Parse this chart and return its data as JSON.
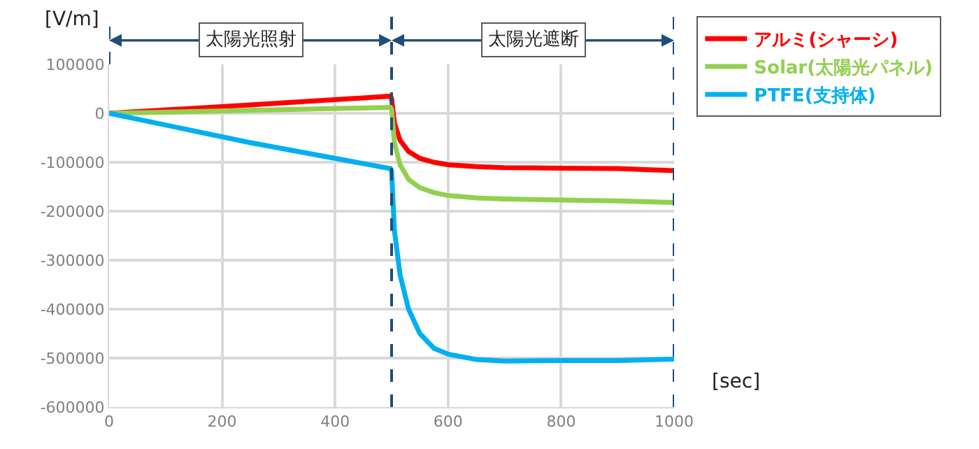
{
  "chart_data": {
    "type": "line",
    "ylabel": "[V/m]",
    "xlabel": "[sec]",
    "annotations": [
      "太陽光照射",
      "太陽光遮断"
    ],
    "x": [
      0,
      250,
      498,
      500,
      505,
      515,
      530,
      550,
      575,
      600,
      650,
      700,
      800,
      900,
      1000
    ],
    "series": [
      {
        "name": "アルミ(シャーシ)",
        "color": "#ff0000",
        "values": [
          0,
          17000,
          35000,
          30000,
          -20000,
          -55000,
          -78000,
          -92000,
          -100000,
          -105000,
          -109000,
          -111000,
          -112000,
          -113000,
          -117000
        ]
      },
      {
        "name": "Solar(太陽光パネル)",
        "color": "#92d050",
        "values": [
          0,
          6000,
          12000,
          8000,
          -60000,
          -105000,
          -135000,
          -152000,
          -162000,
          -168000,
          -173000,
          -175000,
          -177000,
          -179000,
          -182000
        ]
      },
      {
        "name": "PTFE(支持体)",
        "color": "#00b0f0",
        "values": [
          0,
          -60000,
          -113000,
          -118000,
          -240000,
          -330000,
          -400000,
          -450000,
          -480000,
          -492000,
          -503000,
          -506000,
          -505000,
          -505000,
          -502000
        ]
      }
    ],
    "xlim": [
      0,
      1000
    ],
    "xticks": [
      0,
      200,
      400,
      600,
      800,
      1000
    ],
    "ylim": [
      -600000,
      100000
    ],
    "yticks": [
      -600000,
      -500000,
      -400000,
      -300000,
      -200000,
      -100000,
      0,
      100000
    ],
    "ref_lines": [
      {
        "axis": "x",
        "value": 500,
        "color": "#1f4e79",
        "line_style": "dashed"
      },
      {
        "axis": "x",
        "value": 1000,
        "color": "#1f4e79",
        "line_style": "dashed"
      }
    ],
    "grid": true,
    "legend": "right",
    "marker": "none",
    "line_style": "solid"
  }
}
